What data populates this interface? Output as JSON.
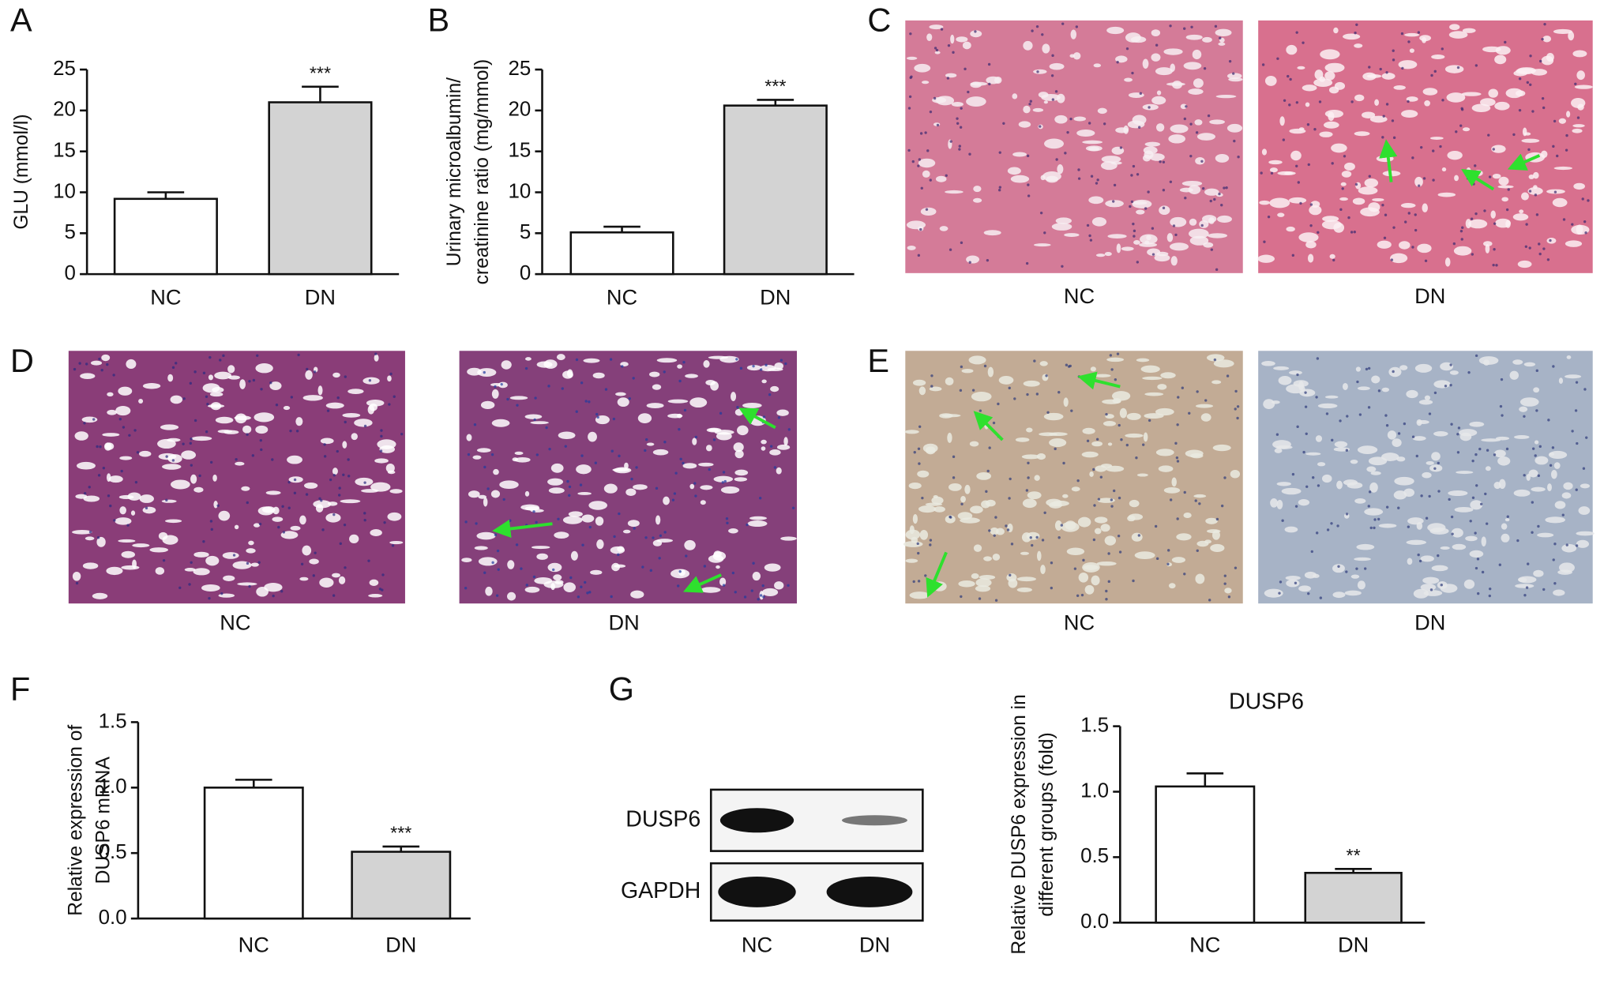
{
  "panel_labels": [
    "A",
    "B",
    "C",
    "D",
    "E",
    "F",
    "G"
  ],
  "chart_data": [
    {
      "type": "bar",
      "categories": [
        "NC",
        "DN"
      ],
      "values": [
        9.2,
        21.0
      ],
      "errors": [
        0.8,
        1.9
      ],
      "colors": [
        "#ffffff",
        "#d3d3d3"
      ],
      "annotations": [
        null,
        "***"
      ],
      "ylabel": [
        "GLU (mmol/l)"
      ],
      "ylim": [
        0,
        25
      ],
      "yticks": [
        0,
        5,
        10,
        15,
        20,
        25
      ]
    },
    {
      "type": "bar",
      "categories": [
        "NC",
        "DN"
      ],
      "values": [
        5.1,
        20.6
      ],
      "errors": [
        0.7,
        0.7
      ],
      "colors": [
        "#ffffff",
        "#d3d3d3"
      ],
      "annotations": [
        null,
        "***"
      ],
      "ylabel": [
        "Urinary microalbumin/",
        "creatinine ratio (mg/mmol)"
      ],
      "ylim": [
        0,
        25
      ],
      "yticks": [
        0,
        5,
        10,
        15,
        20,
        25
      ]
    },
    {
      "type": "bar",
      "categories": [
        "NC",
        "DN"
      ],
      "values": [
        1.0,
        0.51
      ],
      "errors": [
        0.06,
        0.04
      ],
      "colors": [
        "#ffffff",
        "#d3d3d3"
      ],
      "annotations": [
        null,
        "***"
      ],
      "ylabel": [
        "Relative expression of",
        "DUSP6 mRNA"
      ],
      "ylim": [
        0,
        1.5
      ],
      "yticks": [
        {
          "value": 0,
          "label": "0.0"
        },
        0.5,
        {
          "value": 1,
          "label": "1.0"
        },
        1.5
      ]
    },
    {
      "type": "bar",
      "title": "DUSP6",
      "categories": [
        "NC",
        "DN"
      ],
      "values": [
        1.04,
        0.38
      ],
      "errors": [
        0.1,
        0.03
      ],
      "colors": [
        "#ffffff",
        "#d3d3d3"
      ],
      "annotations": [
        null,
        "**"
      ],
      "ylabel": [
        "Relative DUSP6 expression in",
        "different groups (fold)"
      ],
      "ylim": [
        0,
        1.5
      ],
      "yticks": [
        {
          "value": 0,
          "label": "0.0"
        },
        0.5,
        {
          "value": 1,
          "label": "1.0"
        },
        1.5
      ]
    }
  ],
  "histology": [
    {
      "captions": [
        "NC",
        "DN"
      ]
    },
    {
      "captions": [
        "NC",
        "DN"
      ]
    },
    {
      "captions": [
        "NC",
        "DN"
      ]
    }
  ],
  "blot": {
    "rows": [
      "DUSP6",
      "GAPDH"
    ],
    "lanes": [
      "NC",
      "DN"
    ]
  }
}
